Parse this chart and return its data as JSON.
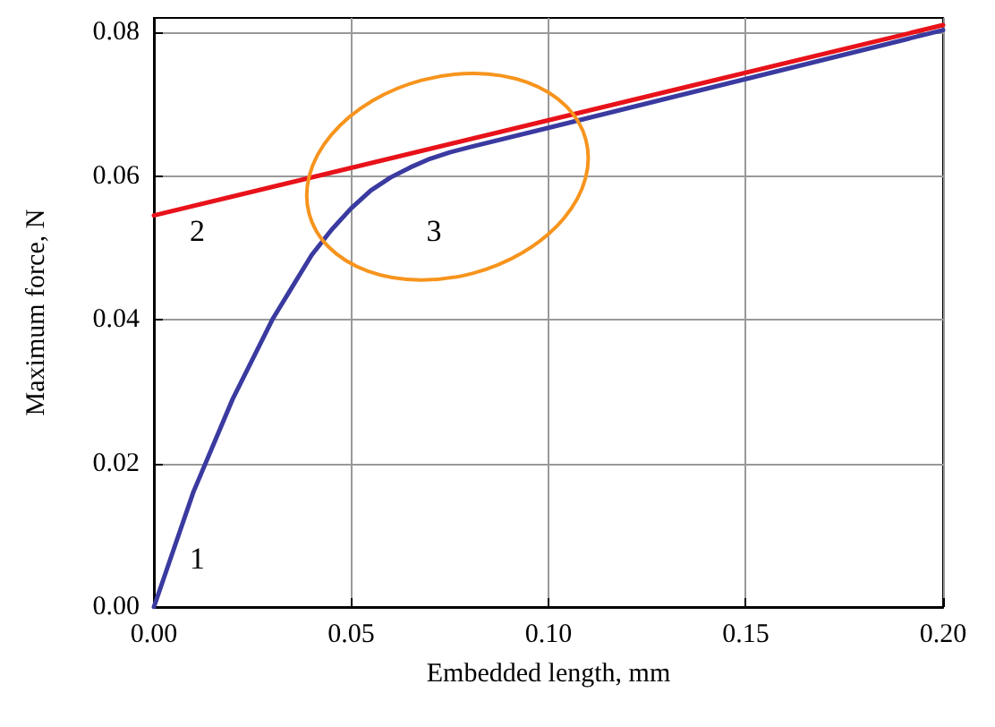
{
  "chart_data": {
    "type": "line",
    "xlabel": "Embedded length, mm",
    "ylabel": "Maximum force, N",
    "series": [
      {
        "color": "#3a3aa0",
        "x": [
          0,
          0.005,
          0.01,
          0.02,
          0.03,
          0.035,
          0.04,
          0.045,
          0.05,
          0.055,
          0.06,
          0.065,
          0.07,
          0.075,
          0.08,
          0.1,
          0.15,
          0.2
        ],
        "values": [
          0,
          0.008,
          0.016,
          0.029,
          0.04,
          0.0445,
          0.049,
          0.0525,
          0.0555,
          0.058,
          0.0598,
          0.0612,
          0.0624,
          0.0633,
          0.064,
          0.0667,
          0.0735,
          0.0803
        ]
      },
      {
        "color": "#e8121a",
        "x": [
          0,
          0.2
        ],
        "values": [
          0.0545,
          0.081
        ]
      }
    ],
    "xlim": [
      0,
      0.2
    ],
    "ylim": [
      0,
      0.082
    ],
    "xticks": [
      {
        "value": 0,
        "label": "0.00"
      },
      {
        "value": 0.05,
        "label": "0.05"
      },
      {
        "value": 0.1,
        "label": "0.10"
      },
      {
        "value": 0.15,
        "label": "0.15"
      },
      {
        "value": 0.2,
        "label": "0.20"
      }
    ],
    "yticks": [
      {
        "value": 0,
        "label": "0.00"
      },
      {
        "value": 0.02,
        "label": "0.02"
      },
      {
        "value": 0.04,
        "label": "0.04"
      },
      {
        "value": 0.06,
        "label": "0.06"
      },
      {
        "value": 0.08,
        "label": "0.08"
      }
    ],
    "grid": true,
    "marker": "none",
    "annotations": [
      "1",
      "2",
      "3"
    ]
  }
}
